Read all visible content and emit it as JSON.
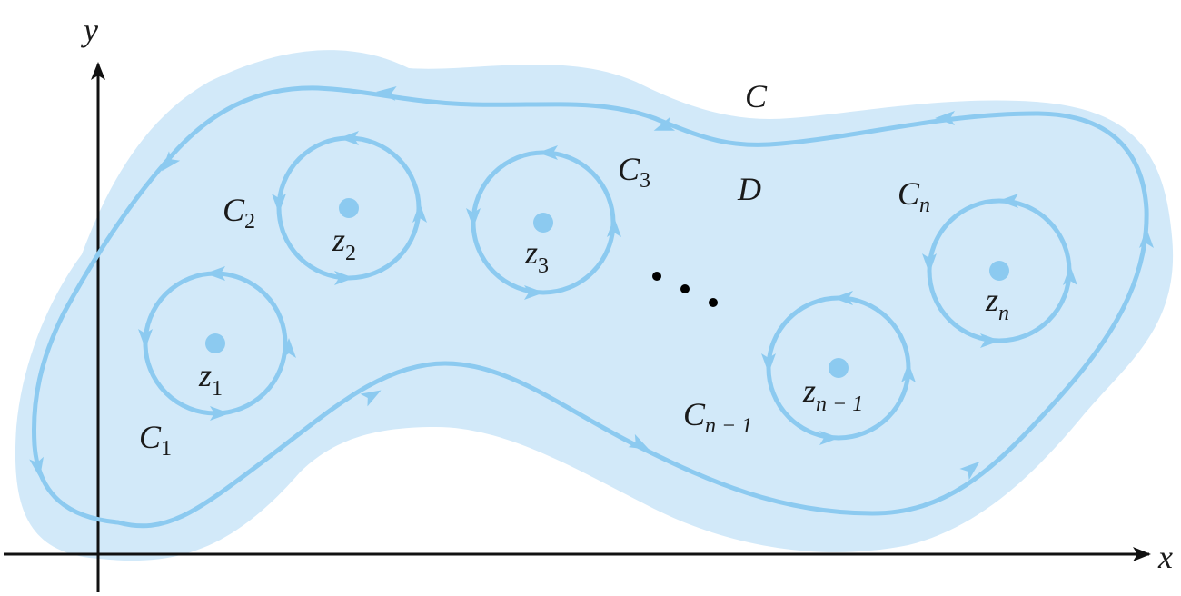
{
  "colors": {
    "region_fill": "#d2e9f9",
    "contour": "#8ccaf0",
    "point": "#8ccaf0",
    "axis": "#111111",
    "text": "#1a1a1a"
  },
  "axes": {
    "x_label": "x",
    "y_label": "y"
  },
  "region": {
    "label": "D"
  },
  "outer_contour": {
    "label": "C"
  },
  "contours": [
    {
      "label": "C",
      "sub": "1",
      "point": "z",
      "point_sub": "1"
    },
    {
      "label": "C",
      "sub": "2",
      "point": "z",
      "point_sub": "2"
    },
    {
      "label": "C",
      "sub": "3",
      "point": "z",
      "point_sub": "3"
    },
    {
      "label": "C",
      "sub": "n − 1",
      "point": "z",
      "point_sub": "n − 1"
    },
    {
      "label": "C",
      "sub": "n",
      "point": "z",
      "point_sub": "n"
    }
  ],
  "ellipsis_icon": "three-dots"
}
